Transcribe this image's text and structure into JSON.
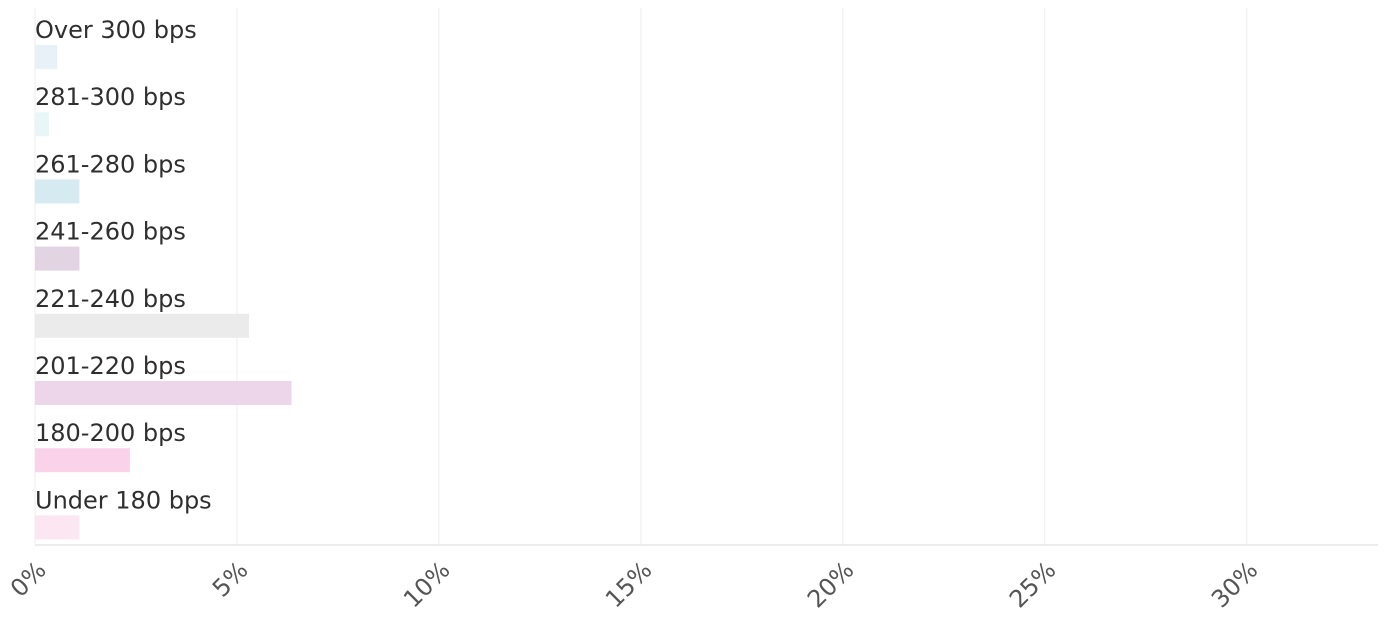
{
  "chart_data": {
    "type": "bar",
    "orientation": "horizontal",
    "title": "",
    "xlabel": "",
    "ylabel": "",
    "categories": [
      "Over 300 bps",
      "281-300 bps",
      "261-280 bps",
      "241-260 bps",
      "221-240 bps",
      "201-220 bps",
      "180-200 bps",
      "Under 180 bps"
    ],
    "values": [
      0.55,
      0.35,
      1.1,
      1.1,
      5.3,
      6.35,
      2.35,
      1.1
    ],
    "colors": [
      "#e8f1f8",
      "#e8f6f8",
      "#d6eaf2",
      "#e2d4e2",
      "#ebebeb",
      "#eed6ea",
      "#fad2ea",
      "#fbe6f1"
    ],
    "xlim": [
      0,
      33.25
    ],
    "x_ticks": [
      0,
      5,
      10,
      15,
      20,
      25,
      30
    ],
    "x_tick_labels": [
      "0%",
      "5%",
      "10%",
      "15%",
      "20%",
      "25%",
      "30%"
    ],
    "grid": true,
    "legend": "none"
  }
}
